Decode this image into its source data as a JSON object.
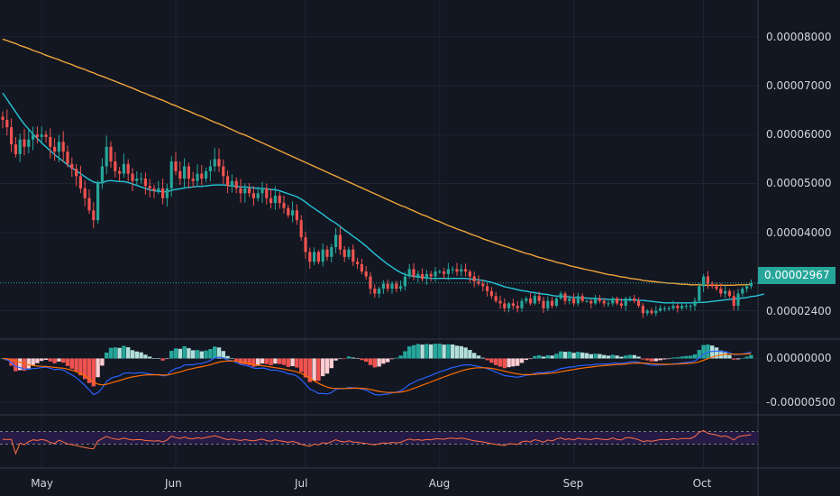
{
  "chart_data": {
    "type": "candlestick",
    "instrument_quote": "0.00002967",
    "colors": {
      "background": "#131722",
      "up": "#26a69a",
      "down": "#ef5350",
      "ma_fast": "#26c6da",
      "ma_slow": "#f0a53a",
      "macd": "#2962ff",
      "signal": "#ff6d00",
      "hist_up_strong": "#26a69a",
      "hist_up_weak": "#b2dfdb",
      "hist_down_strong": "#ef5350",
      "hist_down_weak": "#ffcdd2",
      "rsi": "#ff7043",
      "rsi_band": "#2a1b4e",
      "grid": "#1f2433",
      "axis_text": "#d1d4dc",
      "price_line": "#26a69a"
    },
    "x_ticks": [
      "May",
      "Jun",
      "Jul",
      "Aug",
      "Sep",
      "Oct"
    ],
    "price_axis": {
      "ticks": [
        "0.00008000",
        "0.00007000",
        "0.00006000",
        "0.00005000",
        "0.00004000",
        "0.00002400"
      ],
      "tick_values": [
        8e-05,
        7e-05,
        6e-05,
        5e-05,
        4e-05,
        2.4e-05
      ],
      "range": [
        1.82e-05,
        8.75e-05
      ],
      "last_price": 2.967e-05,
      "last_price_label": "0.00002967"
    },
    "macd_axis": {
      "ticks": [
        "0.00000000",
        "-0.00000500"
      ],
      "tick_values": [
        0,
        -5e-06
      ],
      "range": [
        -6.4e-06,
        2.2e-06
      ]
    },
    "rsi_axis": {
      "range": [
        0,
        100
      ],
      "band": [
        30,
        70
      ]
    },
    "candles": {
      "start_date": "2021-04-22",
      "close": [
        6.3e-05,
        6.15e-05,
        5.8e-05,
        5.6e-05,
        5.9e-05,
        5.75e-05,
        5.9e-05,
        6e-05,
        5.95e-05,
        6e-05,
        5.95e-05,
        5.75e-05,
        5.65e-05,
        5.85e-05,
        5.65e-05,
        5.4e-05,
        5.3e-05,
        5.15e-05,
        4.9e-05,
        4.7e-05,
        4.45e-05,
        4.25e-05,
        5e-05,
        5.35e-05,
        5.75e-05,
        5.45e-05,
        5.25e-05,
        5.2e-05,
        5.4e-05,
        5.2e-05,
        5.05e-05,
        5.1e-05,
        5.1e-05,
        4.95e-05,
        4.9e-05,
        4.85e-05,
        4.9e-05,
        4.7e-05,
        4.9e-05,
        5.45e-05,
        5.25e-05,
        5.1e-05,
        5.35e-05,
        5.1e-05,
        5.05e-05,
        5.2e-05,
        5.1e-05,
        5.25e-05,
        5.35e-05,
        5.5e-05,
        5.35e-05,
        5.15e-05,
        4.95e-05,
        5.05e-05,
        4.9e-05,
        4.8e-05,
        4.9e-05,
        4.8e-05,
        4.7e-05,
        4.8e-05,
        4.9e-05,
        4.7e-05,
        4.6e-05,
        4.75e-05,
        4.6e-05,
        4.5e-05,
        4.35e-05,
        4.45e-05,
        4.25e-05,
        3.9e-05,
        3.6e-05,
        3.4e-05,
        3.6e-05,
        3.4e-05,
        3.65e-05,
        3.5e-05,
        3.7e-05,
        3.95e-05,
        3.65e-05,
        3.5e-05,
        3.65e-05,
        3.4e-05,
        3.35e-05,
        3.2e-05,
        3.1e-05,
        2.85e-05,
        2.75e-05,
        2.85e-05,
        2.95e-05,
        2.85e-05,
        2.95e-05,
        2.85e-05,
        2.9e-05,
        3.1e-05,
        3.25e-05,
        3.1e-05,
        3.15e-05,
        3.05e-05,
        3.15e-05,
        3.1e-05,
        3.2e-05,
        3.2e-05,
        3.15e-05,
        3.25e-05,
        3.25e-05,
        3.2e-05,
        3.25e-05,
        3.2e-05,
        3.1e-05,
        3e-05,
        2.95e-05,
        2.9e-05,
        2.8e-05,
        2.7e-05,
        2.6e-05,
        2.55e-05,
        2.45e-05,
        2.55e-05,
        2.5e-05,
        2.45e-05,
        2.6e-05,
        2.65e-05,
        2.55e-05,
        2.7e-05,
        2.6e-05,
        2.45e-05,
        2.6e-05,
        2.5e-05,
        2.65e-05,
        2.75e-05,
        2.6e-05,
        2.65e-05,
        2.55e-05,
        2.7e-05,
        2.6e-05,
        2.6e-05,
        2.55e-05,
        2.65e-05,
        2.6e-05,
        2.55e-05,
        2.55e-05,
        2.65e-05,
        2.55e-05,
        2.5e-05,
        2.65e-05,
        2.65e-05,
        2.6e-05,
        2.5e-05,
        2.35e-05,
        2.4e-05,
        2.35e-05,
        2.4e-05,
        2.45e-05,
        2.45e-05,
        2.45e-05,
        2.5e-05,
        2.45e-05,
        2.5e-05,
        2.5e-05,
        2.5e-05,
        2.6e-05,
        2.9e-05,
        3.1e-05,
        2.95e-05,
        2.9e-05,
        2.85e-05,
        2.75e-05,
        2.8e-05,
        2.7e-05,
        2.5e-05,
        2.75e-05,
        2.85e-05,
        2.9e-05,
        2.967e-05
      ],
      "ma_fast": [
        6.85e-05,
        6.72e-05,
        6.59e-05,
        6.46e-05,
        6.33e-05,
        6.21e-05,
        6.11e-05,
        6.01e-05,
        5.92e-05,
        5.83e-05,
        5.75e-05,
        5.67e-05,
        5.59e-05,
        5.52e-05,
        5.45e-05,
        5.38e-05,
        5.32e-05,
        5.26e-05,
        5.2e-05,
        5.14e-05,
        5.08e-05,
        5.03e-05,
        5.01e-05,
        5.02e-05,
        5.05e-05,
        5.06e-05,
        5.05e-05,
        5.04e-05,
        5.04e-05,
        5.02e-05,
        4.99e-05,
        4.96e-05,
        4.93e-05,
        4.9e-05,
        4.87e-05,
        4.85e-05,
        4.84e-05,
        4.83e-05,
        4.83e-05,
        4.86e-05,
        4.88e-05,
        4.89e-05,
        4.91e-05,
        4.92e-05,
        4.93e-05,
        4.94e-05,
        4.94e-05,
        4.95e-05,
        4.96e-05,
        4.97e-05,
        4.97e-05,
        4.97e-05,
        4.96e-05,
        4.95e-05,
        4.94e-05,
        4.93e-05,
        4.93e-05,
        4.92e-05,
        4.91e-05,
        4.9e-05,
        4.9e-05,
        4.89e-05,
        4.88e-05,
        4.87e-05,
        4.85e-05,
        4.82e-05,
        4.79e-05,
        4.76e-05,
        4.73e-05,
        4.68e-05,
        4.62e-05,
        4.55e-05,
        4.49e-05,
        4.43e-05,
        4.37e-05,
        4.3e-05,
        4.24e-05,
        4.19e-05,
        4.12e-05,
        4.05e-05,
        3.99e-05,
        3.92e-05,
        3.86e-05,
        3.79e-05,
        3.72e-05,
        3.64e-05,
        3.56e-05,
        3.49e-05,
        3.42e-05,
        3.35e-05,
        3.29e-05,
        3.23e-05,
        3.18e-05,
        3.14e-05,
        3.12e-05,
        3.1e-05,
        3.09e-05,
        3.08e-05,
        3.07e-05,
        3.06e-05,
        3.06e-05,
        3.06e-05,
        3.06e-05,
        3.06e-05,
        3.06e-05,
        3.06e-05,
        3.06e-05,
        3.06e-05,
        3.05e-05,
        3.04e-05,
        3.03e-05,
        3.02e-05,
        3e-05,
        2.98e-05,
        2.95e-05,
        2.92e-05,
        2.89e-05,
        2.87e-05,
        2.85e-05,
        2.83e-05,
        2.81e-05,
        2.8e-05,
        2.78e-05,
        2.77e-05,
        2.75e-05,
        2.74e-05,
        2.73e-05,
        2.71e-05,
        2.7e-05,
        2.7e-05,
        2.69e-05,
        2.68e-05,
        2.67e-05,
        2.67e-05,
        2.66e-05,
        2.66e-05,
        2.65e-05,
        2.65e-05,
        2.64e-05,
        2.64e-05,
        2.63e-05,
        2.63e-05,
        2.63e-05,
        2.62e-05,
        2.62e-05,
        2.62e-05,
        2.62e-05,
        2.61e-05,
        2.61e-05,
        2.6e-05,
        2.59e-05,
        2.58e-05,
        2.57e-05,
        2.56e-05,
        2.56e-05,
        2.56e-05,
        2.56e-05,
        2.56e-05,
        2.56e-05,
        2.56e-05,
        2.56e-05,
        2.57e-05,
        2.57e-05,
        2.58e-05,
        2.59e-05,
        2.6e-05,
        2.61e-05,
        2.62e-05,
        2.63e-05,
        2.64e-05,
        2.65e-05,
        2.66e-05,
        2.67e-05,
        2.69e-05,
        2.7e-05,
        2.72e-05,
        2.74e-05
      ],
      "ma_slow": [
        7.95e-05,
        7.92e-05,
        7.89e-05,
        7.86e-05,
        7.82e-05,
        7.79e-05,
        7.76e-05,
        7.72e-05,
        7.69e-05,
        7.66e-05,
        7.62e-05,
        7.59e-05,
        7.56e-05,
        7.53e-05,
        7.49e-05,
        7.46e-05,
        7.43e-05,
        7.39e-05,
        7.36e-05,
        7.33e-05,
        7.29e-05,
        7.26e-05,
        7.22e-05,
        7.19e-05,
        7.16e-05,
        7.12e-05,
        7.09e-05,
        7.05e-05,
        7.02e-05,
        6.98e-05,
        6.95e-05,
        6.91e-05,
        6.87e-05,
        6.84e-05,
        6.8e-05,
        6.77e-05,
        6.73e-05,
        6.7e-05,
        6.66e-05,
        6.62e-05,
        6.59e-05,
        6.55e-05,
        6.51e-05,
        6.48e-05,
        6.44e-05,
        6.4e-05,
        6.37e-05,
        6.33e-05,
        6.29e-05,
        6.25e-05,
        6.22e-05,
        6.18e-05,
        6.14e-05,
        6.1e-05,
        6.06e-05,
        6.02e-05,
        5.99e-05,
        5.95e-05,
        5.91e-05,
        5.87e-05,
        5.83e-05,
        5.79e-05,
        5.75e-05,
        5.71e-05,
        5.67e-05,
        5.63e-05,
        5.59e-05,
        5.55e-05,
        5.51e-05,
        5.47e-05,
        5.43e-05,
        5.39e-05,
        5.35e-05,
        5.31e-05,
        5.27e-05,
        5.23e-05,
        5.19e-05,
        5.15e-05,
        5.11e-05,
        5.07e-05,
        5.03e-05,
        4.99e-05,
        4.95e-05,
        4.91e-05,
        4.87e-05,
        4.83e-05,
        4.79e-05,
        4.75e-05,
        4.71e-05,
        4.67e-05,
        4.63e-05,
        4.59e-05,
        4.55e-05,
        4.52e-05,
        4.48e-05,
        4.44e-05,
        4.4e-05,
        4.36e-05,
        4.33e-05,
        4.29e-05,
        4.25e-05,
        4.22e-05,
        4.18e-05,
        4.14e-05,
        4.11e-05,
        4.07e-05,
        4.04e-05,
        4.01e-05,
        3.97e-05,
        3.94e-05,
        3.91e-05,
        3.87e-05,
        3.84e-05,
        3.81e-05,
        3.78e-05,
        3.75e-05,
        3.72e-05,
        3.69e-05,
        3.66e-05,
        3.63e-05,
        3.6e-05,
        3.57e-05,
        3.55e-05,
        3.52e-05,
        3.49e-05,
        3.47e-05,
        3.44e-05,
        3.42e-05,
        3.39e-05,
        3.37e-05,
        3.35e-05,
        3.32e-05,
        3.3e-05,
        3.28e-05,
        3.26e-05,
        3.24e-05,
        3.22e-05,
        3.2e-05,
        3.18e-05,
        3.16e-05,
        3.14e-05,
        3.13e-05,
        3.11e-05,
        3.09e-05,
        3.08e-05,
        3.06e-05,
        3.05e-05,
        3.04e-05,
        3.02e-05,
        3.01e-05,
        3e-05,
        2.99e-05,
        2.98e-05,
        2.97e-05,
        2.96e-05,
        2.96e-05,
        2.95e-05,
        2.94e-05,
        2.94e-05,
        2.93e-05,
        2.93e-05,
        2.93e-05,
        2.92e-05,
        2.92e-05,
        2.92e-05,
        2.92e-05,
        2.92e-05,
        2.92e-05,
        2.92e-05,
        2.92e-05,
        2.93e-05,
        2.93e-05,
        2.93e-05,
        2.94e-05
      ]
    }
  }
}
